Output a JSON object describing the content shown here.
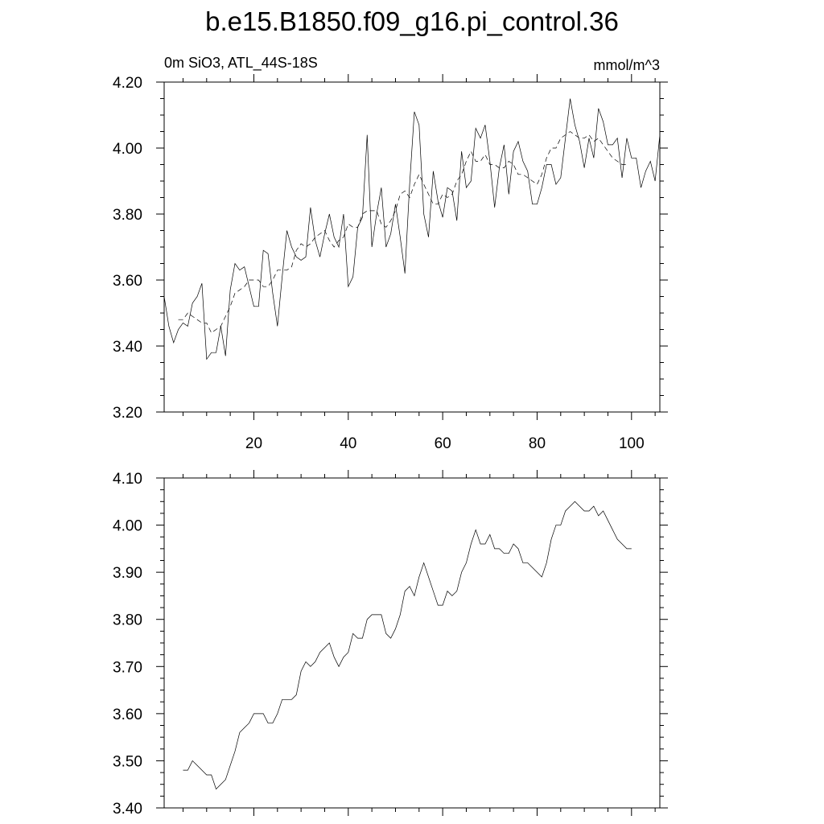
{
  "title": "b.e15.B1850.f09_g16.pi_control.36",
  "chart_data": [
    {
      "type": "line",
      "subtitle_left": "0m SiO3, ATL_44S-18S",
      "subtitle_right": "mmol/m^3",
      "xlim": [
        1,
        106
      ],
      "ylim": [
        3.2,
        4.2
      ],
      "ytick_labels": [
        "3.20",
        "3.40",
        "3.60",
        "3.80",
        "4.00",
        "4.20"
      ],
      "xtick_labels": [
        "20",
        "40",
        "60",
        "80",
        "100"
      ],
      "x_start": 1,
      "series": [
        {
          "style": "solid",
          "values": [
            3.55,
            3.46,
            3.41,
            3.45,
            3.47,
            3.46,
            3.53,
            3.55,
            3.59,
            3.36,
            3.38,
            3.38,
            3.46,
            3.37,
            3.57,
            3.65,
            3.63,
            3.64,
            3.58,
            3.52,
            3.52,
            3.69,
            3.68,
            3.56,
            3.46,
            3.61,
            3.75,
            3.7,
            3.67,
            3.66,
            3.67,
            3.82,
            3.72,
            3.67,
            3.74,
            3.8,
            3.73,
            3.7,
            3.8,
            3.58,
            3.61,
            3.76,
            3.79,
            4.04,
            3.7,
            3.8,
            3.88,
            3.7,
            3.74,
            3.83,
            3.73,
            3.62,
            3.89,
            4.11,
            4.07,
            3.8,
            3.73,
            3.93,
            3.84,
            3.79,
            3.88,
            3.87,
            3.78,
            3.99,
            3.88,
            3.9,
            4.06,
            4.03,
            4.07,
            3.96,
            3.82,
            3.94,
            4.01,
            3.86,
            3.99,
            4.02,
            3.96,
            3.93,
            3.83,
            3.83,
            3.88,
            3.95,
            3.95,
            3.89,
            3.91,
            4.03,
            4.15,
            4.07,
            4.02,
            3.94,
            4.03,
            3.97,
            4.12,
            4.08,
            4.01,
            4.01,
            4.03,
            3.91,
            4.03,
            3.97,
            3.97,
            3.88,
            3.93,
            3.96,
            3.9,
            4.04
          ]
        },
        {
          "style": "dashed",
          "values": [
            null,
            null,
            null,
            3.48,
            3.48,
            3.5,
            3.49,
            3.48,
            3.47,
            3.47,
            3.44,
            3.45,
            3.46,
            3.49,
            3.52,
            3.56,
            3.57,
            3.58,
            3.6,
            3.6,
            3.6,
            3.58,
            3.58,
            3.6,
            3.63,
            3.63,
            3.63,
            3.64,
            3.69,
            3.71,
            3.7,
            3.71,
            3.73,
            3.74,
            3.75,
            3.72,
            3.7,
            3.72,
            3.73,
            3.77,
            3.76,
            3.76,
            3.8,
            3.81,
            3.81,
            3.81,
            3.77,
            3.76,
            3.78,
            3.81,
            3.86,
            3.87,
            3.85,
            3.89,
            3.92,
            3.89,
            3.86,
            3.83,
            3.83,
            3.86,
            3.85,
            3.86,
            3.9,
            3.92,
            3.96,
            3.99,
            3.96,
            3.96,
            3.98,
            3.95,
            3.95,
            3.94,
            3.94,
            3.96,
            3.95,
            3.92,
            3.92,
            3.91,
            3.9,
            3.89,
            3.92,
            3.97,
            4.0,
            4.0,
            4.03,
            4.04,
            4.05,
            4.04,
            4.03,
            4.03,
            4.04,
            4.02,
            4.03,
            4.01,
            3.99,
            3.97,
            3.96,
            3.95,
            3.95,
            null,
            null,
            null,
            null,
            null,
            null,
            null
          ]
        }
      ]
    },
    {
      "type": "line",
      "xlim": [
        1,
        106
      ],
      "ylim": [
        3.4,
        4.1
      ],
      "ytick_labels": [
        "3.40",
        "3.50",
        "3.60",
        "3.70",
        "3.80",
        "3.90",
        "4.00",
        "4.10"
      ],
      "x_start": 1,
      "series": [
        {
          "style": "solid",
          "values": [
            null,
            null,
            null,
            null,
            3.48,
            3.48,
            3.5,
            3.49,
            3.48,
            3.47,
            3.47,
            3.44,
            3.45,
            3.46,
            3.49,
            3.52,
            3.56,
            3.57,
            3.58,
            3.6,
            3.6,
            3.6,
            3.58,
            3.58,
            3.6,
            3.63,
            3.63,
            3.63,
            3.64,
            3.69,
            3.71,
            3.7,
            3.71,
            3.73,
            3.74,
            3.75,
            3.72,
            3.7,
            3.72,
            3.73,
            3.77,
            3.76,
            3.76,
            3.8,
            3.81,
            3.81,
            3.81,
            3.77,
            3.76,
            3.78,
            3.81,
            3.86,
            3.87,
            3.85,
            3.89,
            3.92,
            3.89,
            3.86,
            3.83,
            3.83,
            3.86,
            3.85,
            3.86,
            3.9,
            3.92,
            3.96,
            3.99,
            3.96,
            3.96,
            3.98,
            3.95,
            3.95,
            3.94,
            3.94,
            3.96,
            3.95,
            3.92,
            3.92,
            3.91,
            3.9,
            3.89,
            3.92,
            3.97,
            4.0,
            4.0,
            4.03,
            4.04,
            4.05,
            4.04,
            4.03,
            4.03,
            4.04,
            4.02,
            4.03,
            4.01,
            3.99,
            3.97,
            3.96,
            3.95,
            3.95,
            null,
            null,
            null,
            null,
            null,
            null
          ]
        }
      ]
    }
  ]
}
